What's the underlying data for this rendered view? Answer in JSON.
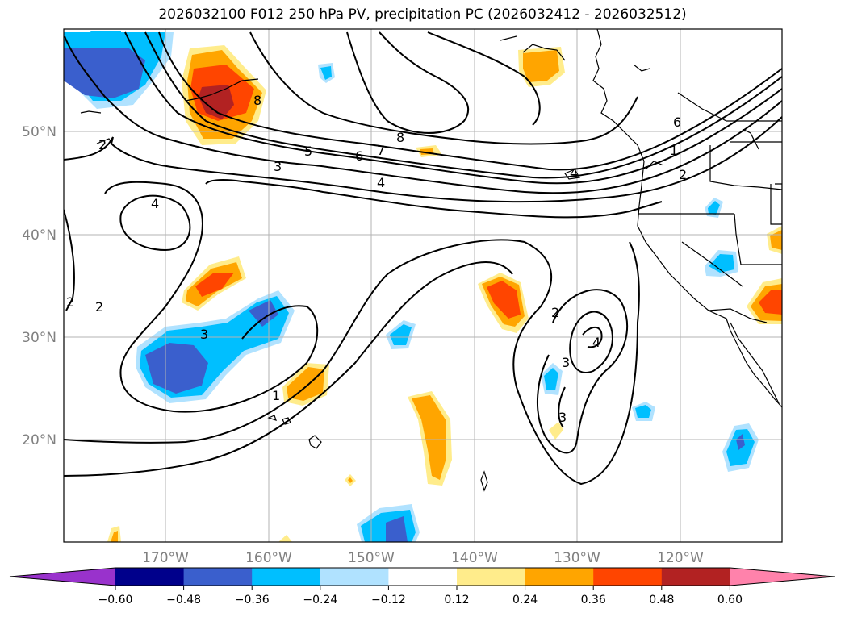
{
  "title": "2026032100 F012 250 hPa PV, precipitation PC (2026032412 - 2026032512)",
  "lon_ticks": [
    "170°W",
    "160°W",
    "150°W",
    "140°W",
    "130°W",
    "120°W"
  ],
  "lat_ticks": [
    "50°N",
    "40°N",
    "30°N",
    "20°N"
  ],
  "colorbar": {
    "ticks": [
      "−0.60",
      "−0.48",
      "−0.36",
      "−0.24",
      "−0.12",
      "0.12",
      "0.24",
      "0.36",
      "0.48",
      "0.60"
    ],
    "colors": [
      "#9932cc",
      "#00008b",
      "#3a5fcd",
      "#00bfff",
      "#b0e2ff",
      "#ffffff",
      "#ffec8b",
      "#ffa500",
      "#ff4500",
      "#b22222",
      "#ff82ab"
    ]
  },
  "contour_labels": [
    "8",
    "2",
    "5",
    "6",
    "7",
    "8",
    "3",
    "4",
    "4",
    "6",
    "1",
    "2",
    "4",
    "3",
    "2",
    "2",
    "1",
    "2",
    "3",
    "4",
    "3",
    "4"
  ]
}
